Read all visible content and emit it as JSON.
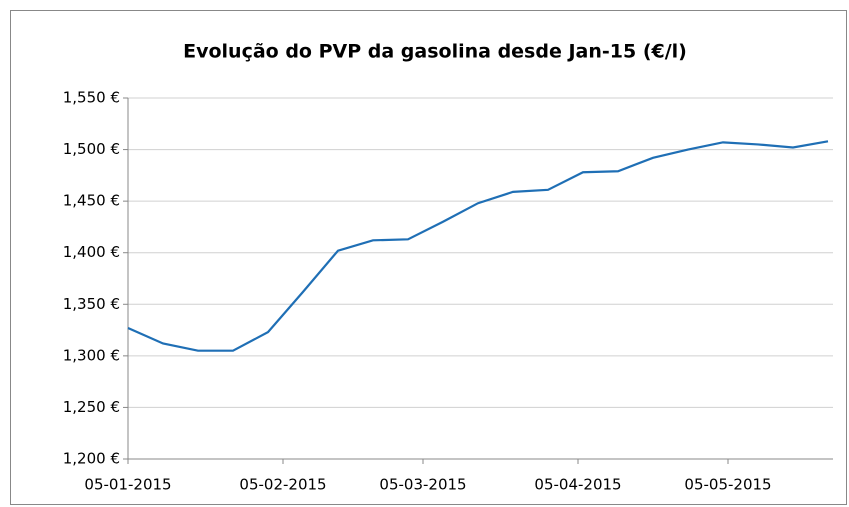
{
  "chart_data": {
    "type": "line",
    "title": "Evolução do PVP da gasolina desde Jan-15 (€/l)",
    "x": [
      "05-01-2015",
      "12-01-2015",
      "19-01-2015",
      "26-01-2015",
      "02-02-2015",
      "09-02-2015",
      "16-02-2015",
      "23-02-2015",
      "02-03-2015",
      "09-03-2015",
      "16-03-2015",
      "23-03-2015",
      "30-03-2015",
      "06-04-2015",
      "13-04-2015",
      "20-04-2015",
      "27-04-2015",
      "04-05-2015",
      "11-05-2015",
      "18-05-2015",
      "25-05-2015"
    ],
    "series": [
      {
        "color": "#1f6fb5",
        "values": [
          1.327,
          1.312,
          1.305,
          1.305,
          1.323,
          1.362,
          1.402,
          1.412,
          1.413,
          1.43,
          1.448,
          1.459,
          1.461,
          1.478,
          1.479,
          1.492,
          1.5,
          1.507,
          1.505,
          1.502,
          1.508
        ]
      }
    ],
    "xlim": [
      "05-01-2015",
      "26-05-2015"
    ],
    "xticks": [
      "05-01-2015",
      "05-02-2015",
      "05-03-2015",
      "05-04-2015",
      "05-05-2015"
    ],
    "ylim": [
      1.2,
      1.55
    ],
    "yticks": [
      {
        "value": 1.2,
        "label": "1,200 €"
      },
      {
        "value": 1.25,
        "label": "1,250 €"
      },
      {
        "value": 1.3,
        "label": "1,300 €"
      },
      {
        "value": 1.35,
        "label": "1,350 €"
      },
      {
        "value": 1.4,
        "label": "1,400 €"
      },
      {
        "value": 1.45,
        "label": "1,450 €"
      },
      {
        "value": 1.5,
        "label": "1,500 €"
      },
      {
        "value": 1.55,
        "label": "1,550 €"
      }
    ],
    "grid": true
  }
}
